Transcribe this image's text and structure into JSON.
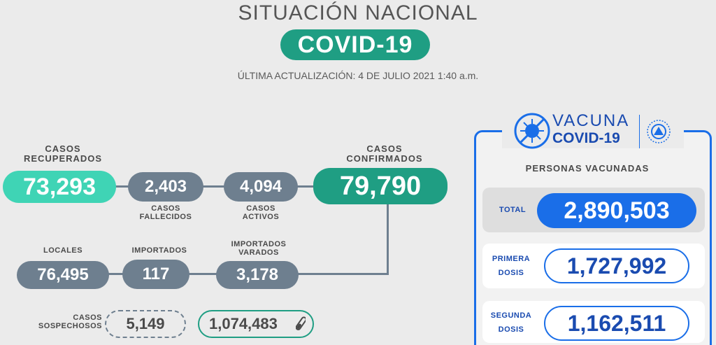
{
  "header": {
    "title": "SITUACIÓN NACIONAL",
    "badge": "COVID-19",
    "updated": "ÚLTIMA ACTUALIZACIÓN: 4 DE JULIO 2021 1:40 a.m."
  },
  "stats": {
    "recovered": {
      "label_1": "CASOS",
      "label_2": "RECUPERADOS",
      "value": "73,293"
    },
    "deaths": {
      "label_1": "CASOS",
      "label_2": "FALLECIDOS",
      "value": "2,403"
    },
    "active": {
      "label_1": "CASOS",
      "label_2": "ACTIVOS",
      "value": "4,094"
    },
    "confirmed": {
      "label_1": "CASOS",
      "label_2": "CONFIRMADOS",
      "value": "79,790"
    },
    "local": {
      "label": "LOCALES",
      "value": "76,495"
    },
    "imported": {
      "label": "IMPORTADOS",
      "value": "117"
    },
    "imported_stranded": {
      "label_1": "IMPORTADOS",
      "label_2": "VARADOS",
      "value": "3,178"
    },
    "suspected": {
      "label_1": "CASOS",
      "label_2": "SOSPECHOSOS",
      "value": "5,149"
    },
    "tests": {
      "value": "1,074,483",
      "icon": "test-tube-icon"
    }
  },
  "vaccine": {
    "logo_line1": "VACUNA",
    "logo_line2": "COVID-19",
    "logo_icon": "virus-crossed-icon",
    "seal_icon": "el-salvador-seal-icon",
    "title": "PERSONAS VACUNADAS",
    "total": {
      "label": "TOTAL",
      "value": "2,890,503"
    },
    "first": {
      "label_1": "PRIMERA",
      "label_2": "DOSIS",
      "value": "1,727,992"
    },
    "second": {
      "label_1": "SEGUNDA",
      "label_2": "DOSIS",
      "value": "1,162,511"
    }
  },
  "colors": {
    "teal": "#1f9e83",
    "mint": "#3fd4b5",
    "slate": "#6e7f8f",
    "blue": "#1a6ee8"
  }
}
